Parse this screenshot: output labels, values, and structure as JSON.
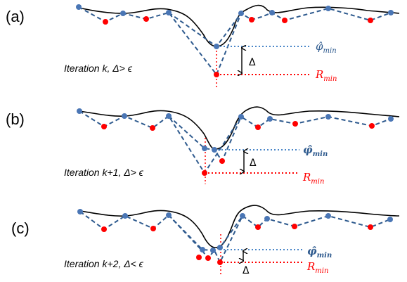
{
  "colors": {
    "curve": "#000000",
    "dashed": "#2E5A8E",
    "blue_point": "#4A76B5",
    "red_point": "#FF0000",
    "phi_line": "#4A86C8",
    "r_line": "#FF0000"
  },
  "panels": [
    {
      "label": "(a)",
      "iteration_text": "Iteration k,  Δ> ϵ",
      "delta_symbol": "Δ",
      "phi_label": {
        "base": "φ̂",
        "sub": "min"
      },
      "r_label": {
        "base": "R",
        "sub": "min"
      }
    },
    {
      "label": "(b)",
      "iteration_text": "Iteration k+1,  Δ> ϵ",
      "delta_symbol": "Δ",
      "phi_label": {
        "base": "φ̂",
        "sub": "min"
      },
      "r_label": {
        "base": "R",
        "sub": "min"
      }
    },
    {
      "label": "(c)",
      "iteration_text": "Iteration k+2,  Δ< ϵ",
      "delta_symbol": "Δ",
      "phi_label": {
        "base": "φ̂",
        "sub": "min"
      },
      "r_label": {
        "base": "R",
        "sub": "min"
      }
    }
  ]
}
